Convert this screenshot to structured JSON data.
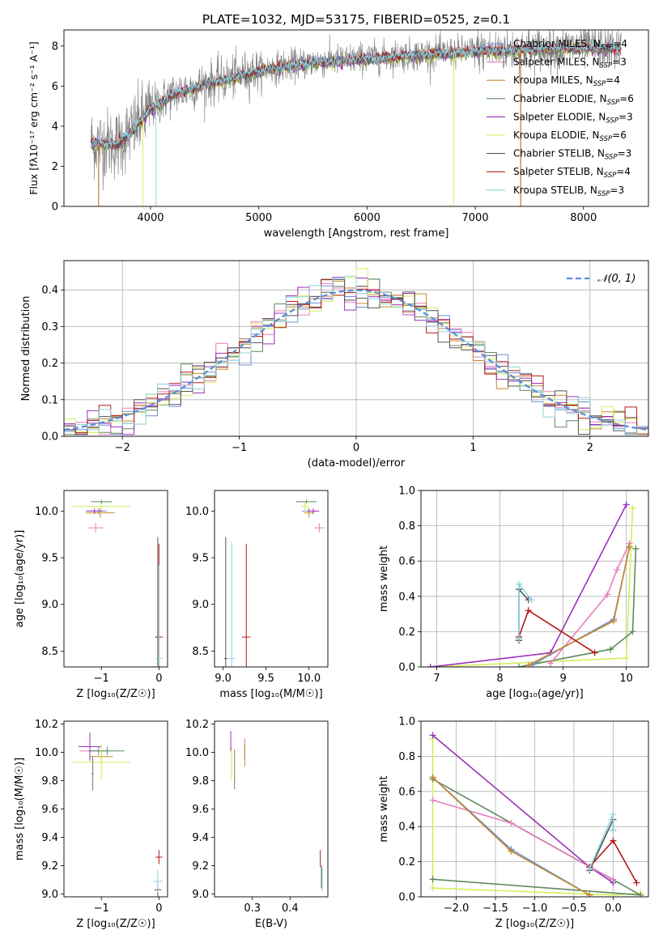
{
  "title": "PLATE=1032, MJD=53175, FIBERID=0525, z=0.1",
  "colors": {
    "chabrier_miles": "#6a8fd8",
    "salpeter_miles": "#e87fbf",
    "kroupa_miles": "#c58a2a",
    "chabrier_elodie": "#5e8a5e",
    "salpeter_elodie": "#9b30b8",
    "kroupa_elodie": "#d6ee5a",
    "chabrier_stelib": "#555555",
    "salpeter_stelib": "#b21818",
    "kroupa_stelib": "#8fd4de",
    "data": "#808080",
    "gauss": "#5b8fd8"
  },
  "chart_data": [
    {
      "id": "spectrum",
      "type": "line",
      "xlabel": "wavelength [Angstrom, rest frame]",
      "ylabel": "Flux [f$_\\lambda$10$^{-17}$ erg cm$^{-2}$ s$^{-1}$ A$^{-1}$]",
      "xlim": [
        3200,
        8600
      ],
      "ylim": [
        0,
        8.8
      ],
      "xticks": [
        4000,
        5000,
        6000,
        7000,
        8000
      ],
      "yticks": [
        0,
        2,
        4,
        6,
        8
      ],
      "legend_position": "right",
      "legend": [
        {
          "pre": "Chabrier MILES, N",
          "post": "=4",
          "color_key": "chabrier_miles"
        },
        {
          "pre": "Salpeter MILES, N",
          "post": "=3",
          "color_key": "salpeter_miles"
        },
        {
          "pre": "Kroupa MILES, N",
          "post": "=4",
          "color_key": "kroupa_miles"
        },
        {
          "pre": "Chabrier ELODIE, N",
          "post": "=6",
          "color_key": "chabrier_elodie"
        },
        {
          "pre": "Salpeter ELODIE, N",
          "post": "=3",
          "color_key": "salpeter_elodie"
        },
        {
          "pre": "Kroupa ELODIE, N",
          "post": "=6",
          "color_key": "kroupa_elodie"
        },
        {
          "pre": "Chabrier STELIB, N",
          "post": "=3",
          "color_key": "chabrier_stelib"
        },
        {
          "pre": "Salpeter STELIB, N",
          "post": "=4",
          "color_key": "salpeter_stelib"
        },
        {
          "pre": "Kroupa STELIB, N",
          "post": "=3",
          "color_key": "kroupa_stelib"
        }
      ],
      "legend_sub": "SSP",
      "continuum": [
        [
          3450,
          3.2
        ],
        [
          3700,
          3.1
        ],
        [
          3850,
          3.9
        ],
        [
          4000,
          4.9
        ],
        [
          4200,
          5.6
        ],
        [
          4500,
          6.1
        ],
        [
          4800,
          6.5
        ],
        [
          5000,
          6.8
        ],
        [
          5500,
          7.2
        ],
        [
          6000,
          7.4
        ],
        [
          6500,
          7.6
        ],
        [
          7000,
          7.75
        ],
        [
          7500,
          7.85
        ],
        [
          8000,
          7.95
        ],
        [
          8350,
          7.9
        ]
      ]
    },
    {
      "id": "residuals",
      "type": "step",
      "xlabel": "(data-model)/error",
      "ylabel": "Normed distribution",
      "xlim": [
        -2.5,
        2.5
      ],
      "ylim": [
        0,
        0.48
      ],
      "xticks": [
        -2,
        -1,
        0,
        1,
        2
      ],
      "yticks": [
        0.0,
        0.1,
        0.2,
        0.3,
        0.4
      ],
      "legend": "𝒩(0, 1)",
      "legend_position": "upper right",
      "gaussian": {
        "mu": 0,
        "sigma": 1
      }
    },
    {
      "id": "age_z",
      "type": "errorbar",
      "xlabel": "Z [log₁₀(Z/Z☉)]",
      "ylabel": "age  [log₁₀(age/yr)]",
      "xlim": [
        -1.65,
        0.15
      ],
      "ylim": [
        8.33,
        10.22
      ],
      "xticks": [
        -1,
        0
      ],
      "yticks": [
        8.5,
        9.0,
        9.5,
        10.0
      ],
      "points": [
        {
          "c": "chabrier_miles",
          "x": -1.05,
          "y": 10.0,
          "xe": 0.15,
          "ye": 0.03
        },
        {
          "c": "salpeter_miles",
          "x": -1.1,
          "y": 9.82,
          "xe": 0.13,
          "ye": 0.05
        },
        {
          "c": "kroupa_miles",
          "x": -1.02,
          "y": 9.98,
          "xe": 0.25,
          "ye": 0.05
        },
        {
          "c": "chabrier_elodie",
          "x": -1.0,
          "y": 10.1,
          "xe": 0.18,
          "ye": 0.02
        },
        {
          "c": "salpeter_elodie",
          "x": -1.12,
          "y": 10.0,
          "xe": 0.15,
          "ye": 0.03
        },
        {
          "c": "kroupa_elodie",
          "x": -1.0,
          "y": 10.05,
          "xe": 0.5,
          "ye": 0.03
        },
        {
          "c": "chabrier_stelib",
          "x": -0.02,
          "y": 8.42,
          "xe": 0.02,
          "ye": 1.3
        },
        {
          "c": "salpeter_stelib",
          "x": 0.0,
          "y": 8.65,
          "xe": 0.07,
          "ye": 1.0
        },
        {
          "c": "kroupa_stelib",
          "x": 0.0,
          "y": 8.42,
          "xe": 0.06,
          "ye": 1.0
        }
      ]
    },
    {
      "id": "age_mass",
      "type": "errorbar",
      "xlabel": "mass [log₁₀(M/M☉)]",
      "ylabel": "",
      "xlim": [
        8.9,
        10.22
      ],
      "ylim": [
        8.33,
        10.22
      ],
      "xticks": [
        9.0,
        9.5,
        10.0
      ],
      "yticks": [
        8.5,
        9.0,
        9.5,
        10.0
      ],
      "points": [
        {
          "c": "chabrier_miles",
          "x": 10.0,
          "y": 10.0,
          "xe": 0.08,
          "ye": 0.03
        },
        {
          "c": "salpeter_miles",
          "x": 10.12,
          "y": 9.82,
          "xe": 0.06,
          "ye": 0.05
        },
        {
          "c": "kroupa_miles",
          "x": 10.0,
          "y": 9.98,
          "xe": 0.06,
          "ye": 0.05
        },
        {
          "c": "chabrier_elodie",
          "x": 9.97,
          "y": 10.1,
          "xe": 0.12,
          "ye": 0.02
        },
        {
          "c": "salpeter_elodie",
          "x": 10.05,
          "y": 10.0,
          "xe": 0.07,
          "ye": 0.03
        },
        {
          "c": "kroupa_elodie",
          "x": 9.95,
          "y": 10.05,
          "xe": 0.05,
          "ye": 0.05
        },
        {
          "c": "chabrier_stelib",
          "x": 9.03,
          "y": 8.42,
          "xe": 0.02,
          "ye": 1.3
        },
        {
          "c": "salpeter_stelib",
          "x": 9.27,
          "y": 8.65,
          "xe": 0.05,
          "ye": 1.0
        },
        {
          "c": "kroupa_stelib",
          "x": 9.1,
          "y": 8.42,
          "xe": 0.04,
          "ye": 1.25
        }
      ]
    },
    {
      "id": "mw_age",
      "type": "line",
      "xlabel": "age  [log₁₀(age/yr)]",
      "ylabel": "mass weight",
      "xlim": [
        6.75,
        10.35
      ],
      "ylim": [
        0,
        1.0
      ],
      "xticks": [
        7,
        8,
        9,
        10
      ],
      "yticks": [
        0.0,
        0.2,
        0.4,
        0.6,
        0.8,
        1.0
      ],
      "series": [
        {
          "c": "kroupa_elodie",
          "x": [
            6.9,
            10.0,
            10.1,
            10.1
          ],
          "y": [
            0.0,
            0.05,
            0.9,
            0.9
          ]
        },
        {
          "c": "salpeter_elodie",
          "x": [
            6.9,
            8.8,
            10.0
          ],
          "y": [
            0.0,
            0.08,
            0.92
          ]
        },
        {
          "c": "chabrier_elodie",
          "x": [
            8.3,
            9.75,
            10.1,
            10.15
          ],
          "y": [
            0.0,
            0.1,
            0.2,
            0.67
          ]
        },
        {
          "c": "salpeter_miles",
          "x": [
            8.8,
            9.7,
            9.85,
            10.05
          ],
          "y": [
            0.02,
            0.41,
            0.55,
            0.7
          ]
        },
        {
          "c": "chabrier_miles",
          "x": [
            8.5,
            9.8,
            10.05
          ],
          "y": [
            0.01,
            0.27,
            0.68
          ]
        },
        {
          "c": "kroupa_miles",
          "x": [
            8.45,
            9.8,
            10.05
          ],
          "y": [
            0.01,
            0.26,
            0.68
          ]
        },
        {
          "c": "chabrier_stelib",
          "x": [
            8.3,
            8.3,
            8.45
          ],
          "y": [
            0.15,
            0.44,
            0.38
          ]
        },
        {
          "c": "salpeter_stelib",
          "x": [
            8.3,
            8.45,
            9.5
          ],
          "y": [
            0.17,
            0.32,
            0.08
          ]
        },
        {
          "c": "kroupa_stelib",
          "x": [
            8.3,
            8.3,
            8.5
          ],
          "y": [
            0.16,
            0.47,
            0.38
          ]
        }
      ]
    },
    {
      "id": "mass_z",
      "type": "errorbar",
      "xlabel": "Z [log₁₀(Z/Z☉)]",
      "ylabel": "mass [log₁₀(M/M☉)]",
      "xlim": [
        -1.65,
        0.15
      ],
      "ylim": [
        8.98,
        10.22
      ],
      "xticks": [
        -1,
        0
      ],
      "yticks": [
        9.0,
        9.2,
        9.4,
        9.6,
        9.8,
        10.0,
        10.2
      ],
      "points": [
        {
          "c": "chabrier_miles",
          "x": -1.05,
          "y": 10.01,
          "xe": 0.2,
          "ye": 0.03
        },
        {
          "c": "salpeter_miles",
          "x": -1.2,
          "y": 10.01,
          "xe": 0.18,
          "ye": 0.03
        },
        {
          "c": "kroupa_miles",
          "x": -1.0,
          "y": 9.97,
          "xe": 0.2,
          "ye": 0.05
        },
        {
          "c": "chabrier_elodie",
          "x": -0.9,
          "y": 10.01,
          "xe": 0.3,
          "ye": 0.03
        },
        {
          "c": "salpeter_elodie",
          "x": -1.2,
          "y": 10.04,
          "xe": 0.2,
          "ye": 0.1
        },
        {
          "c": "kroupa_elodie",
          "x": -1.0,
          "y": 9.93,
          "xe": 0.5,
          "ye": 0.13
        },
        {
          "c": "chabrier_stelib",
          "x": -0.02,
          "y": 9.03,
          "xe": 0.06,
          "ye": 0.06
        },
        {
          "c": "salpeter_stelib",
          "x": 0.0,
          "y": 9.26,
          "xe": 0.06,
          "ye": 0.05
        },
        {
          "c": "kroupa_stelib",
          "x": -0.02,
          "y": 9.09,
          "xe": 0.08,
          "ye": 0.08
        },
        {
          "c": "chabrier_elodie",
          "x": -1.15,
          "y": 9.85,
          "xe": 0.02,
          "ye": 0.12
        }
      ]
    },
    {
      "id": "mass_ebv",
      "type": "errorbar",
      "xlabel": "E(B-V)",
      "ylabel": "",
      "xlim": [
        0.2,
        0.5
      ],
      "ylim": [
        8.98,
        10.22
      ],
      "xticks": [
        0.3,
        0.4
      ],
      "yticks": [
        9.0,
        9.2,
        9.4,
        9.6,
        9.8,
        10.0,
        10.2
      ],
      "points": [
        {
          "c": "chabrier_miles",
          "x": 0.28,
          "y": 10.0,
          "xe": 0.0,
          "ye": 0.05
        },
        {
          "c": "salpeter_miles",
          "x": 0.28,
          "y": 10.03,
          "xe": 0.0,
          "ye": 0.07
        },
        {
          "c": "kroupa_miles",
          "x": 0.28,
          "y": 9.98,
          "xe": 0.0,
          "ye": 0.08
        },
        {
          "c": "chabrier_elodie",
          "x": 0.253,
          "y": 9.88,
          "xe": 0.0,
          "ye": 0.14
        },
        {
          "c": "salpeter_elodie",
          "x": 0.243,
          "y": 10.08,
          "xe": 0.0,
          "ye": 0.07
        },
        {
          "c": "kroupa_elodie",
          "x": 0.245,
          "y": 9.92,
          "xe": 0.0,
          "ye": 0.12
        },
        {
          "c": "chabrier_stelib",
          "x": 0.483,
          "y": 9.12,
          "xe": 0.0,
          "ye": 0.08
        },
        {
          "c": "salpeter_stelib",
          "x": 0.48,
          "y": 9.25,
          "xe": 0.0,
          "ye": 0.06
        },
        {
          "c": "kroupa_stelib",
          "x": 0.485,
          "y": 9.1,
          "xe": 0.0,
          "ye": 0.08
        }
      ]
    },
    {
      "id": "mw_z",
      "type": "line",
      "xlabel": "Z [log₁₀(Z/Z☉)]",
      "ylabel": "mass weight",
      "xlim": [
        -2.45,
        0.45
      ],
      "ylim": [
        0,
        1.0
      ],
      "xticks": [
        -2.0,
        -1.5,
        -1.0,
        -0.5,
        0.0
      ],
      "yticks": [
        0.0,
        0.2,
        0.4,
        0.6,
        0.8,
        1.0
      ],
      "series": [
        {
          "c": "kroupa_elodie",
          "x": [
            -2.3,
            -2.3,
            0.0,
            0.35
          ],
          "y": [
            0.9,
            0.05,
            0.01,
            0.02
          ]
        },
        {
          "c": "salpeter_elodie",
          "x": [
            -2.3,
            -0.3,
            0.0
          ],
          "y": [
            0.92,
            0.17,
            0.08
          ]
        },
        {
          "c": "chabrier_elodie",
          "x": [
            -2.3,
            0.35,
            -2.3
          ],
          "y": [
            0.67,
            0.01,
            0.1
          ]
        },
        {
          "c": "salpeter_miles",
          "x": [
            -2.3,
            -1.3,
            -0.3,
            0.0
          ],
          "y": [
            0.55,
            0.42,
            0.17,
            0.1
          ]
        },
        {
          "c": "chabrier_miles",
          "x": [
            -2.3,
            -1.3,
            -0.3
          ],
          "y": [
            0.68,
            0.27,
            0.01
          ]
        },
        {
          "c": "kroupa_miles",
          "x": [
            -2.3,
            -1.3,
            -0.3
          ],
          "y": [
            0.68,
            0.26,
            0.01
          ]
        },
        {
          "c": "chabrier_stelib",
          "x": [
            -0.3,
            0.0,
            0.0
          ],
          "y": [
            0.15,
            0.44,
            0.38
          ]
        },
        {
          "c": "salpeter_stelib",
          "x": [
            -0.3,
            0.0,
            0.3
          ],
          "y": [
            0.17,
            0.32,
            0.08
          ]
        },
        {
          "c": "kroupa_stelib",
          "x": [
            -0.3,
            0.0,
            0.0
          ],
          "y": [
            0.16,
            0.47,
            0.38
          ]
        }
      ]
    }
  ]
}
